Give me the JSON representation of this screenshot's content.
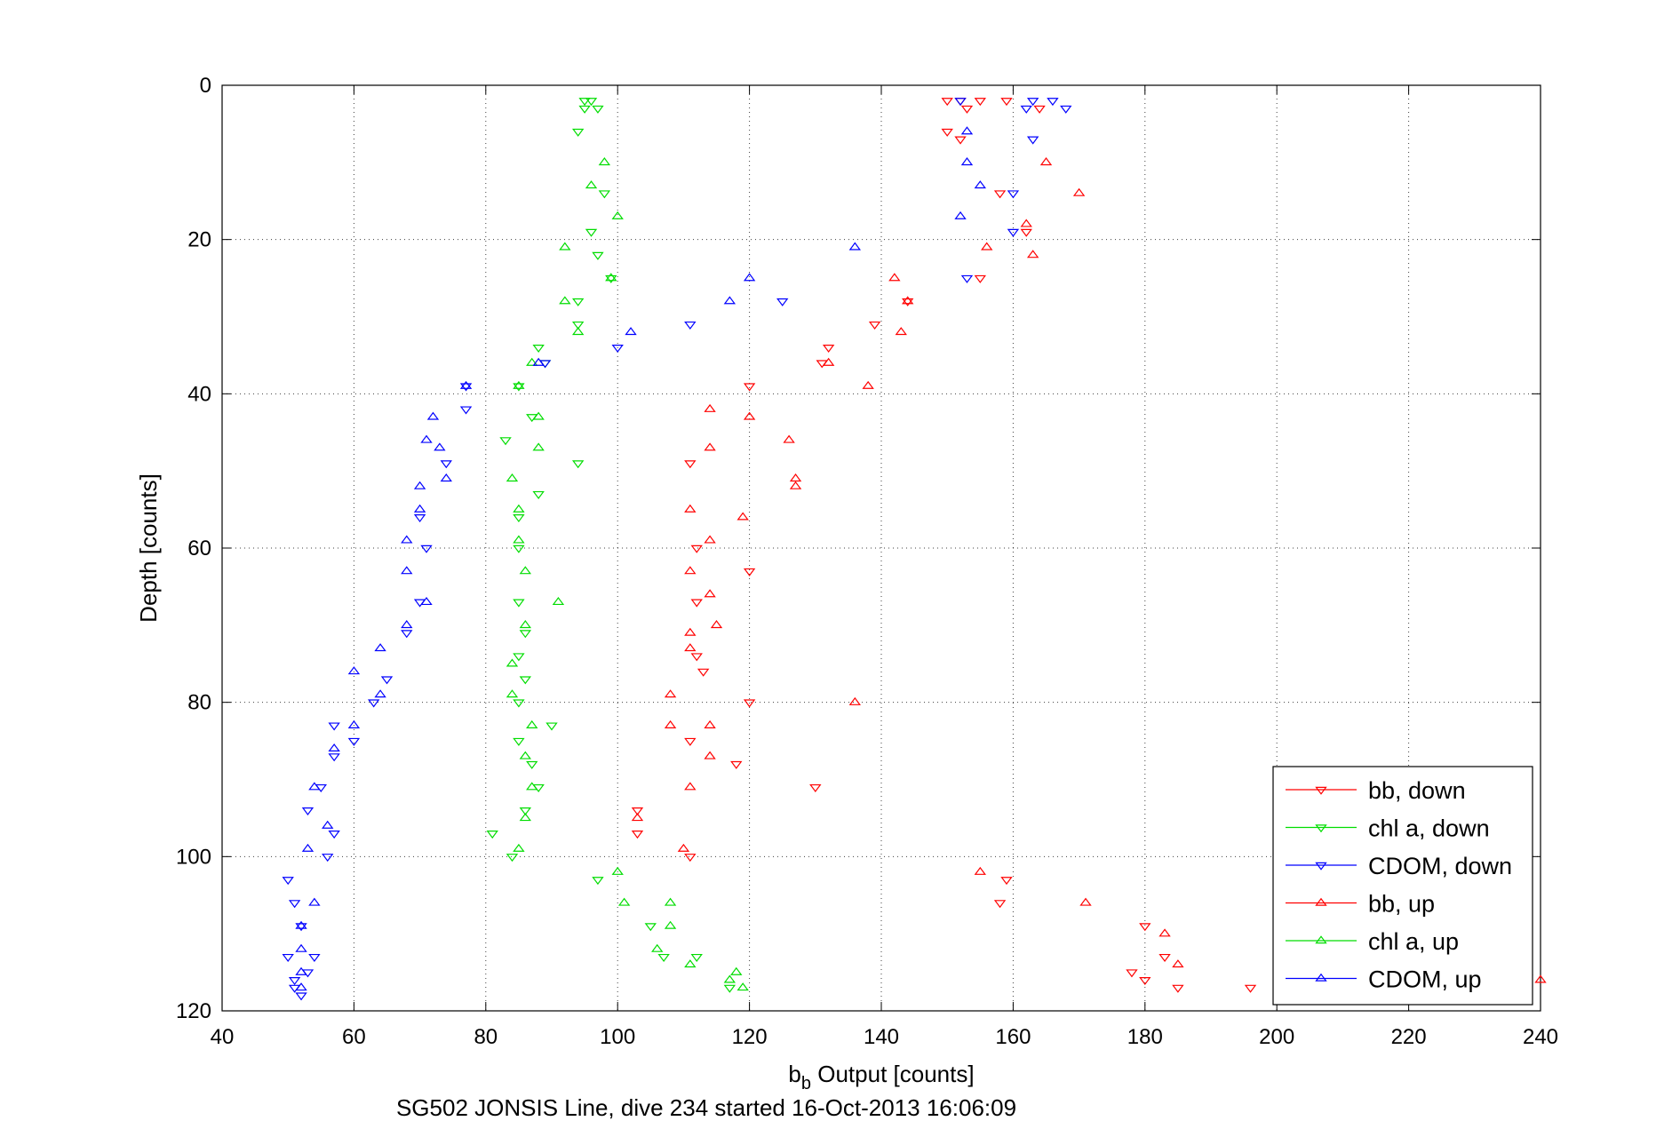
{
  "chart_data": {
    "type": "scatter",
    "xlabel_main": "b",
    "xlabel_sub": "b",
    "xlabel_rest": " Output [counts]",
    "ylabel": "Depth [counts]",
    "subtitle": "SG502 JONSIS Line, dive 234 started 16-Oct-2013 16:06:09",
    "xlim": [
      40,
      240
    ],
    "ylim": [
      0,
      120
    ],
    "y_reversed": true,
    "xticks": [
      40,
      60,
      80,
      100,
      120,
      140,
      160,
      180,
      200,
      220,
      240
    ],
    "yticks": [
      0,
      20,
      40,
      60,
      80,
      100,
      120
    ],
    "grid": true,
    "legend_position": "bottom-right",
    "series": [
      {
        "name": "bb, down",
        "color": "#ff0000",
        "marker": "triangle-down",
        "points": [
          [
            150,
            2
          ],
          [
            152,
            2
          ],
          [
            153,
            3
          ],
          [
            155,
            2
          ],
          [
            159,
            2
          ],
          [
            164,
            3
          ],
          [
            150,
            6
          ],
          [
            152,
            7
          ],
          [
            158,
            14
          ],
          [
            162,
            19
          ],
          [
            155,
            25
          ],
          [
            144,
            28
          ],
          [
            139,
            31
          ],
          [
            132,
            34
          ],
          [
            131,
            36
          ],
          [
            120,
            39
          ],
          [
            111,
            49
          ],
          [
            112,
            60
          ],
          [
            120,
            63
          ],
          [
            112,
            67
          ],
          [
            112,
            74
          ],
          [
            113,
            76
          ],
          [
            120,
            80
          ],
          [
            111,
            85
          ],
          [
            118,
            88
          ],
          [
            130,
            91
          ],
          [
            103,
            94
          ],
          [
            103,
            97
          ],
          [
            111,
            100
          ],
          [
            159,
            103
          ],
          [
            158,
            106
          ],
          [
            180,
            109
          ],
          [
            183,
            113
          ],
          [
            178,
            115
          ],
          [
            180,
            116
          ],
          [
            185,
            117
          ],
          [
            196,
            117
          ]
        ]
      },
      {
        "name": "chl a, down",
        "color": "#00dd00",
        "marker": "triangle-down",
        "points": [
          [
            95,
            2
          ],
          [
            96,
            2
          ],
          [
            95,
            3
          ],
          [
            97,
            3
          ],
          [
            94,
            6
          ],
          [
            98,
            14
          ],
          [
            96,
            19
          ],
          [
            97,
            22
          ],
          [
            99,
            25
          ],
          [
            94,
            28
          ],
          [
            94,
            31
          ],
          [
            88,
            34
          ],
          [
            89,
            36
          ],
          [
            85,
            39
          ],
          [
            87,
            43
          ],
          [
            83,
            46
          ],
          [
            94,
            49
          ],
          [
            88,
            53
          ],
          [
            85,
            56
          ],
          [
            85,
            60
          ],
          [
            85,
            67
          ],
          [
            86,
            71
          ],
          [
            85,
            74
          ],
          [
            86,
            77
          ],
          [
            85,
            80
          ],
          [
            90,
            83
          ],
          [
            85,
            85
          ],
          [
            87,
            88
          ],
          [
            88,
            91
          ],
          [
            86,
            94
          ],
          [
            81,
            97
          ],
          [
            84,
            100
          ],
          [
            97,
            103
          ],
          [
            105,
            109
          ],
          [
            107,
            113
          ],
          [
            112,
            113
          ],
          [
            117,
            117
          ]
        ]
      },
      {
        "name": "CDOM, down",
        "color": "#0000ff",
        "marker": "triangle-down",
        "points": [
          [
            152,
            2
          ],
          [
            163,
            2
          ],
          [
            166,
            2
          ],
          [
            168,
            3
          ],
          [
            162,
            3
          ],
          [
            163,
            7
          ],
          [
            160,
            14
          ],
          [
            160,
            19
          ],
          [
            153,
            25
          ],
          [
            125,
            28
          ],
          [
            111,
            31
          ],
          [
            100,
            34
          ],
          [
            89,
            36
          ],
          [
            77,
            39
          ],
          [
            77,
            42
          ],
          [
            74,
            49
          ],
          [
            70,
            56
          ],
          [
            71,
            60
          ],
          [
            70,
            67
          ],
          [
            68,
            71
          ],
          [
            65,
            77
          ],
          [
            63,
            80
          ],
          [
            60,
            85
          ],
          [
            57,
            83
          ],
          [
            57,
            87
          ],
          [
            55,
            91
          ],
          [
            53,
            94
          ],
          [
            57,
            97
          ],
          [
            56,
            100
          ],
          [
            50,
            103
          ],
          [
            51,
            106
          ],
          [
            52,
            109
          ],
          [
            54,
            113
          ],
          [
            50,
            113
          ],
          [
            53,
            115
          ],
          [
            51,
            116
          ],
          [
            51,
            117
          ],
          [
            52,
            118
          ]
        ]
      },
      {
        "name": "bb, up",
        "color": "#ff0000",
        "marker": "triangle-up",
        "points": [
          [
            165,
            10
          ],
          [
            170,
            14
          ],
          [
            162,
            18
          ],
          [
            156,
            21
          ],
          [
            163,
            22
          ],
          [
            142,
            25
          ],
          [
            144,
            28
          ],
          [
            143,
            32
          ],
          [
            132,
            36
          ],
          [
            138,
            39
          ],
          [
            114,
            42
          ],
          [
            120,
            43
          ],
          [
            126,
            46
          ],
          [
            114,
            47
          ],
          [
            127,
            51
          ],
          [
            127,
            52
          ],
          [
            111,
            55
          ],
          [
            119,
            56
          ],
          [
            114,
            59
          ],
          [
            111,
            63
          ],
          [
            114,
            66
          ],
          [
            111,
            71
          ],
          [
            115,
            70
          ],
          [
            111,
            73
          ],
          [
            108,
            79
          ],
          [
            136,
            80
          ],
          [
            114,
            83
          ],
          [
            108,
            83
          ],
          [
            114,
            87
          ],
          [
            111,
            91
          ],
          [
            103,
            95
          ],
          [
            110,
            99
          ],
          [
            155,
            102
          ],
          [
            171,
            106
          ],
          [
            183,
            110
          ],
          [
            185,
            114
          ],
          [
            238,
            115
          ],
          [
            240,
            116
          ]
        ]
      },
      {
        "name": "chl a, up",
        "color": "#00dd00",
        "marker": "triangle-up",
        "points": [
          [
            98,
            10
          ],
          [
            96,
            13
          ],
          [
            100,
            17
          ],
          [
            92,
            21
          ],
          [
            99,
            25
          ],
          [
            92,
            28
          ],
          [
            94,
            32
          ],
          [
            87,
            36
          ],
          [
            85,
            39
          ],
          [
            88,
            43
          ],
          [
            88,
            47
          ],
          [
            84,
            51
          ],
          [
            85,
            55
          ],
          [
            85,
            59
          ],
          [
            86,
            63
          ],
          [
            91,
            67
          ],
          [
            86,
            70
          ],
          [
            84,
            75
          ],
          [
            84,
            79
          ],
          [
            87,
            83
          ],
          [
            86,
            87
          ],
          [
            87,
            91
          ],
          [
            86,
            95
          ],
          [
            85,
            99
          ],
          [
            100,
            102
          ],
          [
            101,
            106
          ],
          [
            108,
            106
          ],
          [
            108,
            109
          ],
          [
            106,
            112
          ],
          [
            111,
            114
          ],
          [
            118,
            115
          ],
          [
            117,
            116
          ],
          [
            119,
            117
          ]
        ]
      },
      {
        "name": "CDOM, up",
        "color": "#0000ff",
        "marker": "triangle-up",
        "points": [
          [
            153,
            6
          ],
          [
            153,
            10
          ],
          [
            155,
            13
          ],
          [
            152,
            17
          ],
          [
            136,
            21
          ],
          [
            120,
            25
          ],
          [
            117,
            28
          ],
          [
            102,
            32
          ],
          [
            88,
            36
          ],
          [
            77,
            39
          ],
          [
            72,
            43
          ],
          [
            71,
            46
          ],
          [
            73,
            47
          ],
          [
            74,
            51
          ],
          [
            70,
            52
          ],
          [
            70,
            55
          ],
          [
            68,
            59
          ],
          [
            68,
            63
          ],
          [
            71,
            67
          ],
          [
            68,
            70
          ],
          [
            64,
            73
          ],
          [
            60,
            76
          ],
          [
            64,
            79
          ],
          [
            60,
            83
          ],
          [
            57,
            86
          ],
          [
            54,
            91
          ],
          [
            56,
            96
          ],
          [
            53,
            99
          ],
          [
            54,
            106
          ],
          [
            52,
            109
          ],
          [
            52,
            112
          ],
          [
            52,
            115
          ],
          [
            52,
            117
          ]
        ]
      }
    ]
  }
}
